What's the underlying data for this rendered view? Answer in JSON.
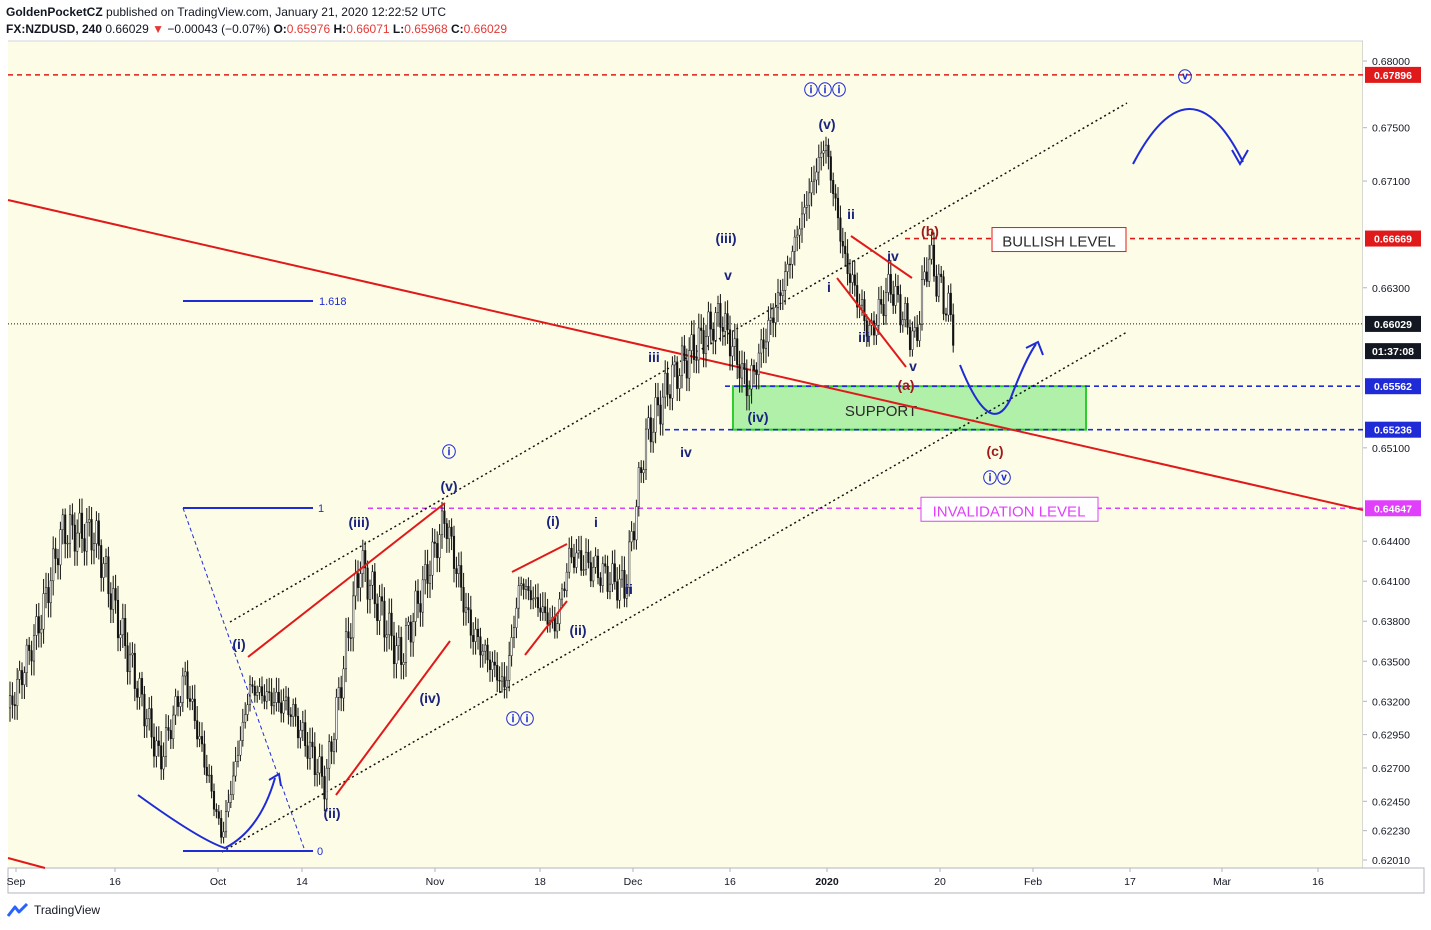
{
  "header": {
    "author": "GoldenPocketCZ",
    "published_text": "published on TradingView.com, January 21, 2020 12:22:52 UTC",
    "symbol": "FX:NZDUSD, 240",
    "last": "0.66029",
    "arrow": "▼",
    "change": "−0.00043 (−0.07%)",
    "o_label": "O:",
    "o": "0.65976",
    "h_label": "H:",
    "h": "0.66071",
    "l_label": "L:",
    "l": "0.65968",
    "c_label": "C:",
    "c": "0.66029"
  },
  "footer": {
    "brand": "TradingView",
    "logo_icon": "tradingview-logo-icon"
  },
  "colors": {
    "background": "#fdfde7",
    "red": "#e01a1a",
    "blue": "#1f2bd6",
    "navy": "#1a237e",
    "magenta": "#e040fb",
    "green": "#7ee87e",
    "darkred": "#a11a1a"
  },
  "chart_data": {
    "type": "candlestick",
    "instrument": "FX:NZDUSD",
    "timeframe": "240",
    "ylim": [
      0.6195,
      0.6815
    ],
    "y_ticks": [
      "0.68000",
      "0.67500",
      "0.67100",
      "0.66300",
      "0.65100",
      "0.64400",
      "0.64100",
      "0.63800",
      "0.63500",
      "0.63200",
      "0.62950",
      "0.62700",
      "0.62450",
      "0.62230",
      "0.62010"
    ],
    "x_ticks": [
      "Sep",
      "16",
      "Oct",
      "14",
      "Nov",
      "18",
      "Dec",
      "16",
      "2020",
      "20",
      "Feb",
      "17",
      "Mar",
      "16"
    ],
    "price_tags": [
      {
        "label": "0.67896",
        "value": 0.67896,
        "color": "#e01a1a"
      },
      {
        "label": "0.66669",
        "value": 0.66669,
        "color": "#e01a1a"
      },
      {
        "label": "0.66029",
        "value": 0.66029,
        "color": "#131722"
      },
      {
        "label": "01:37:08",
        "value": 0.65825,
        "color": "#131722"
      },
      {
        "label": "0.65562",
        "value": 0.65562,
        "color": "#1f2bd6"
      },
      {
        "label": "0.65236",
        "value": 0.65236,
        "color": "#1f2bd6"
      },
      {
        "label": "0.64647",
        "value": 0.64647,
        "color": "#e040fb"
      }
    ],
    "levels": [
      {
        "value": 0.67896,
        "color": "#e01a1a",
        "style": "dashed"
      },
      {
        "value": 0.66669,
        "color": "#e01a1a",
        "style": "dashed",
        "label": "BULLISH LEVEL"
      },
      {
        "value": 0.66029,
        "color": "#131722",
        "style": "dotted"
      },
      {
        "value": 0.65562,
        "color": "#1f2bd6",
        "style": "dashed"
      },
      {
        "value": 0.65236,
        "color": "#1f2bd6",
        "style": "dashed"
      },
      {
        "value": 0.64647,
        "color": "#e040fb",
        "style": "dashed",
        "label": "INVALIDATION LEVEL"
      }
    ],
    "zone": {
      "label": "SUPPORT",
      "from": 0.65236,
      "to": 0.65562
    },
    "fib_labels": [
      "1.618",
      "1",
      "0"
    ],
    "wave_labels": [
      {
        "text": "ⓘ",
        "color": "#1f2bd6"
      },
      {
        "text": "ⓘⓘ",
        "color": "#1f2bd6"
      },
      {
        "text": "ⓘⓘⓘ",
        "color": "#1f2bd6"
      },
      {
        "text": "ⓘⓥ",
        "color": "#1f2bd6"
      },
      {
        "text": "ⓥ",
        "color": "#1f2bd6"
      },
      {
        "text": "(i)",
        "color": "#1a237e"
      },
      {
        "text": "(ii)",
        "color": "#1a237e"
      },
      {
        "text": "(iii)",
        "color": "#1a237e"
      },
      {
        "text": "(iv)",
        "color": "#1a237e"
      },
      {
        "text": "(v)",
        "color": "#1a237e"
      },
      {
        "text": "i",
        "color": "#1a237e"
      },
      {
        "text": "ii",
        "color": "#1a237e"
      },
      {
        "text": "iii",
        "color": "#1a237e"
      },
      {
        "text": "iv",
        "color": "#1a237e"
      },
      {
        "text": "v",
        "color": "#1a237e"
      },
      {
        "text": "(a)",
        "color": "#a11a1a"
      },
      {
        "text": "(b)",
        "color": "#a11a1a"
      },
      {
        "text": "(c)",
        "color": "#a11a1a"
      }
    ]
  }
}
